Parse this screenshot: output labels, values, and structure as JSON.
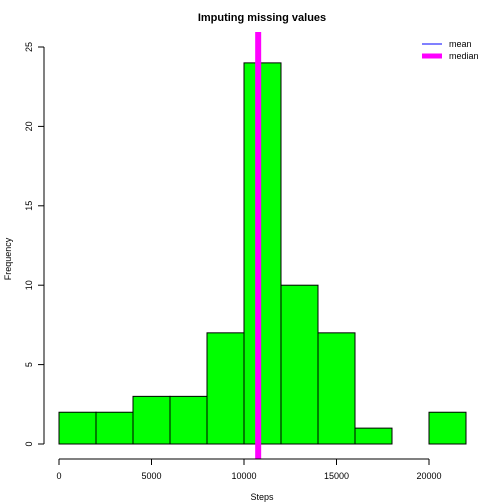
{
  "chart_data": {
    "type": "bar",
    "title": "Imputing missing values",
    "xlabel": "Steps",
    "ylabel": "Frequency",
    "bin_edges": [
      0,
      2000,
      4000,
      6000,
      8000,
      10000,
      12000,
      14000,
      16000,
      18000,
      20000,
      22000
    ],
    "values": [
      2,
      2,
      3,
      3,
      7,
      24,
      10,
      7,
      1,
      0,
      2
    ],
    "xlim": [
      0,
      22000
    ],
    "ylim": [
      0,
      25
    ],
    "x_ticks": [
      0,
      5000,
      10000,
      15000,
      20000
    ],
    "y_ticks": [
      0,
      5,
      10,
      15,
      20,
      25
    ],
    "bar_color": "#00ff00",
    "reference_lines": [
      {
        "name": "mean",
        "x": 10766,
        "color": "#0000ff"
      },
      {
        "name": "median",
        "x": 10766,
        "color": "#ff00ff"
      }
    ],
    "legend": {
      "placement": "top-right",
      "entries": [
        {
          "label": "mean",
          "color": "#0000ff"
        },
        {
          "label": "median",
          "color": "#ff00ff"
        }
      ]
    }
  }
}
